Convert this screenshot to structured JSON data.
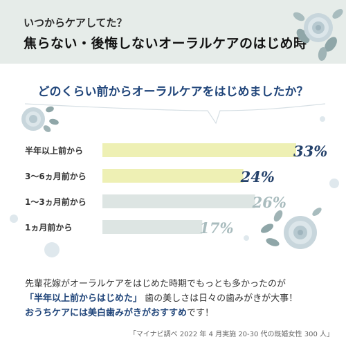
{
  "header": {
    "subtitle": "いつからケアしてた？",
    "title": "焦らない・後悔しないオーラルケアのはじめ時"
  },
  "question": "どのくらい前からオーラルケアをはじめましたか？",
  "chart_data": {
    "type": "bar",
    "orientation": "horizontal",
    "categories": [
      "半年以上前から",
      "3〜6ヵ月前から",
      "1〜3ヵ月前から",
      "1ヵ月前から"
    ],
    "values": [
      33,
      24,
      26,
      17
    ],
    "value_labels": [
      "33%",
      "24%",
      "26%",
      "17%"
    ],
    "unit": "%",
    "xlim": [
      0,
      33
    ],
    "grid": false,
    "bar_colors": [
      "#eef0b4",
      "#eef0b4",
      "#dde5e3",
      "#dde5e3"
    ],
    "label_colors": [
      "#25426b",
      "#25426b",
      "#a9bcbe",
      "#a9bcbe"
    ]
  },
  "bottom": {
    "line1": "先輩花嫁がオーラルケアをはじめた時期でもっとも多かったのが",
    "line2_highlight": "「半年以上前からはじめた」",
    "line2_rest": "歯の美しさは日々の歯みがきが大事！",
    "line3_highlight": "おうちケアには美白歯みがきがおすすめ",
    "line3_rest": "です！"
  },
  "source": "「マイナビ調べ 2022 年 4 月実施 20-30 代の既婚女性 300 人」",
  "colors": {
    "header_bg": "#e6ece9",
    "accent_navy": "#20457a",
    "bar_yellow": "#eef0b4",
    "bar_gray": "#dde5e3"
  }
}
